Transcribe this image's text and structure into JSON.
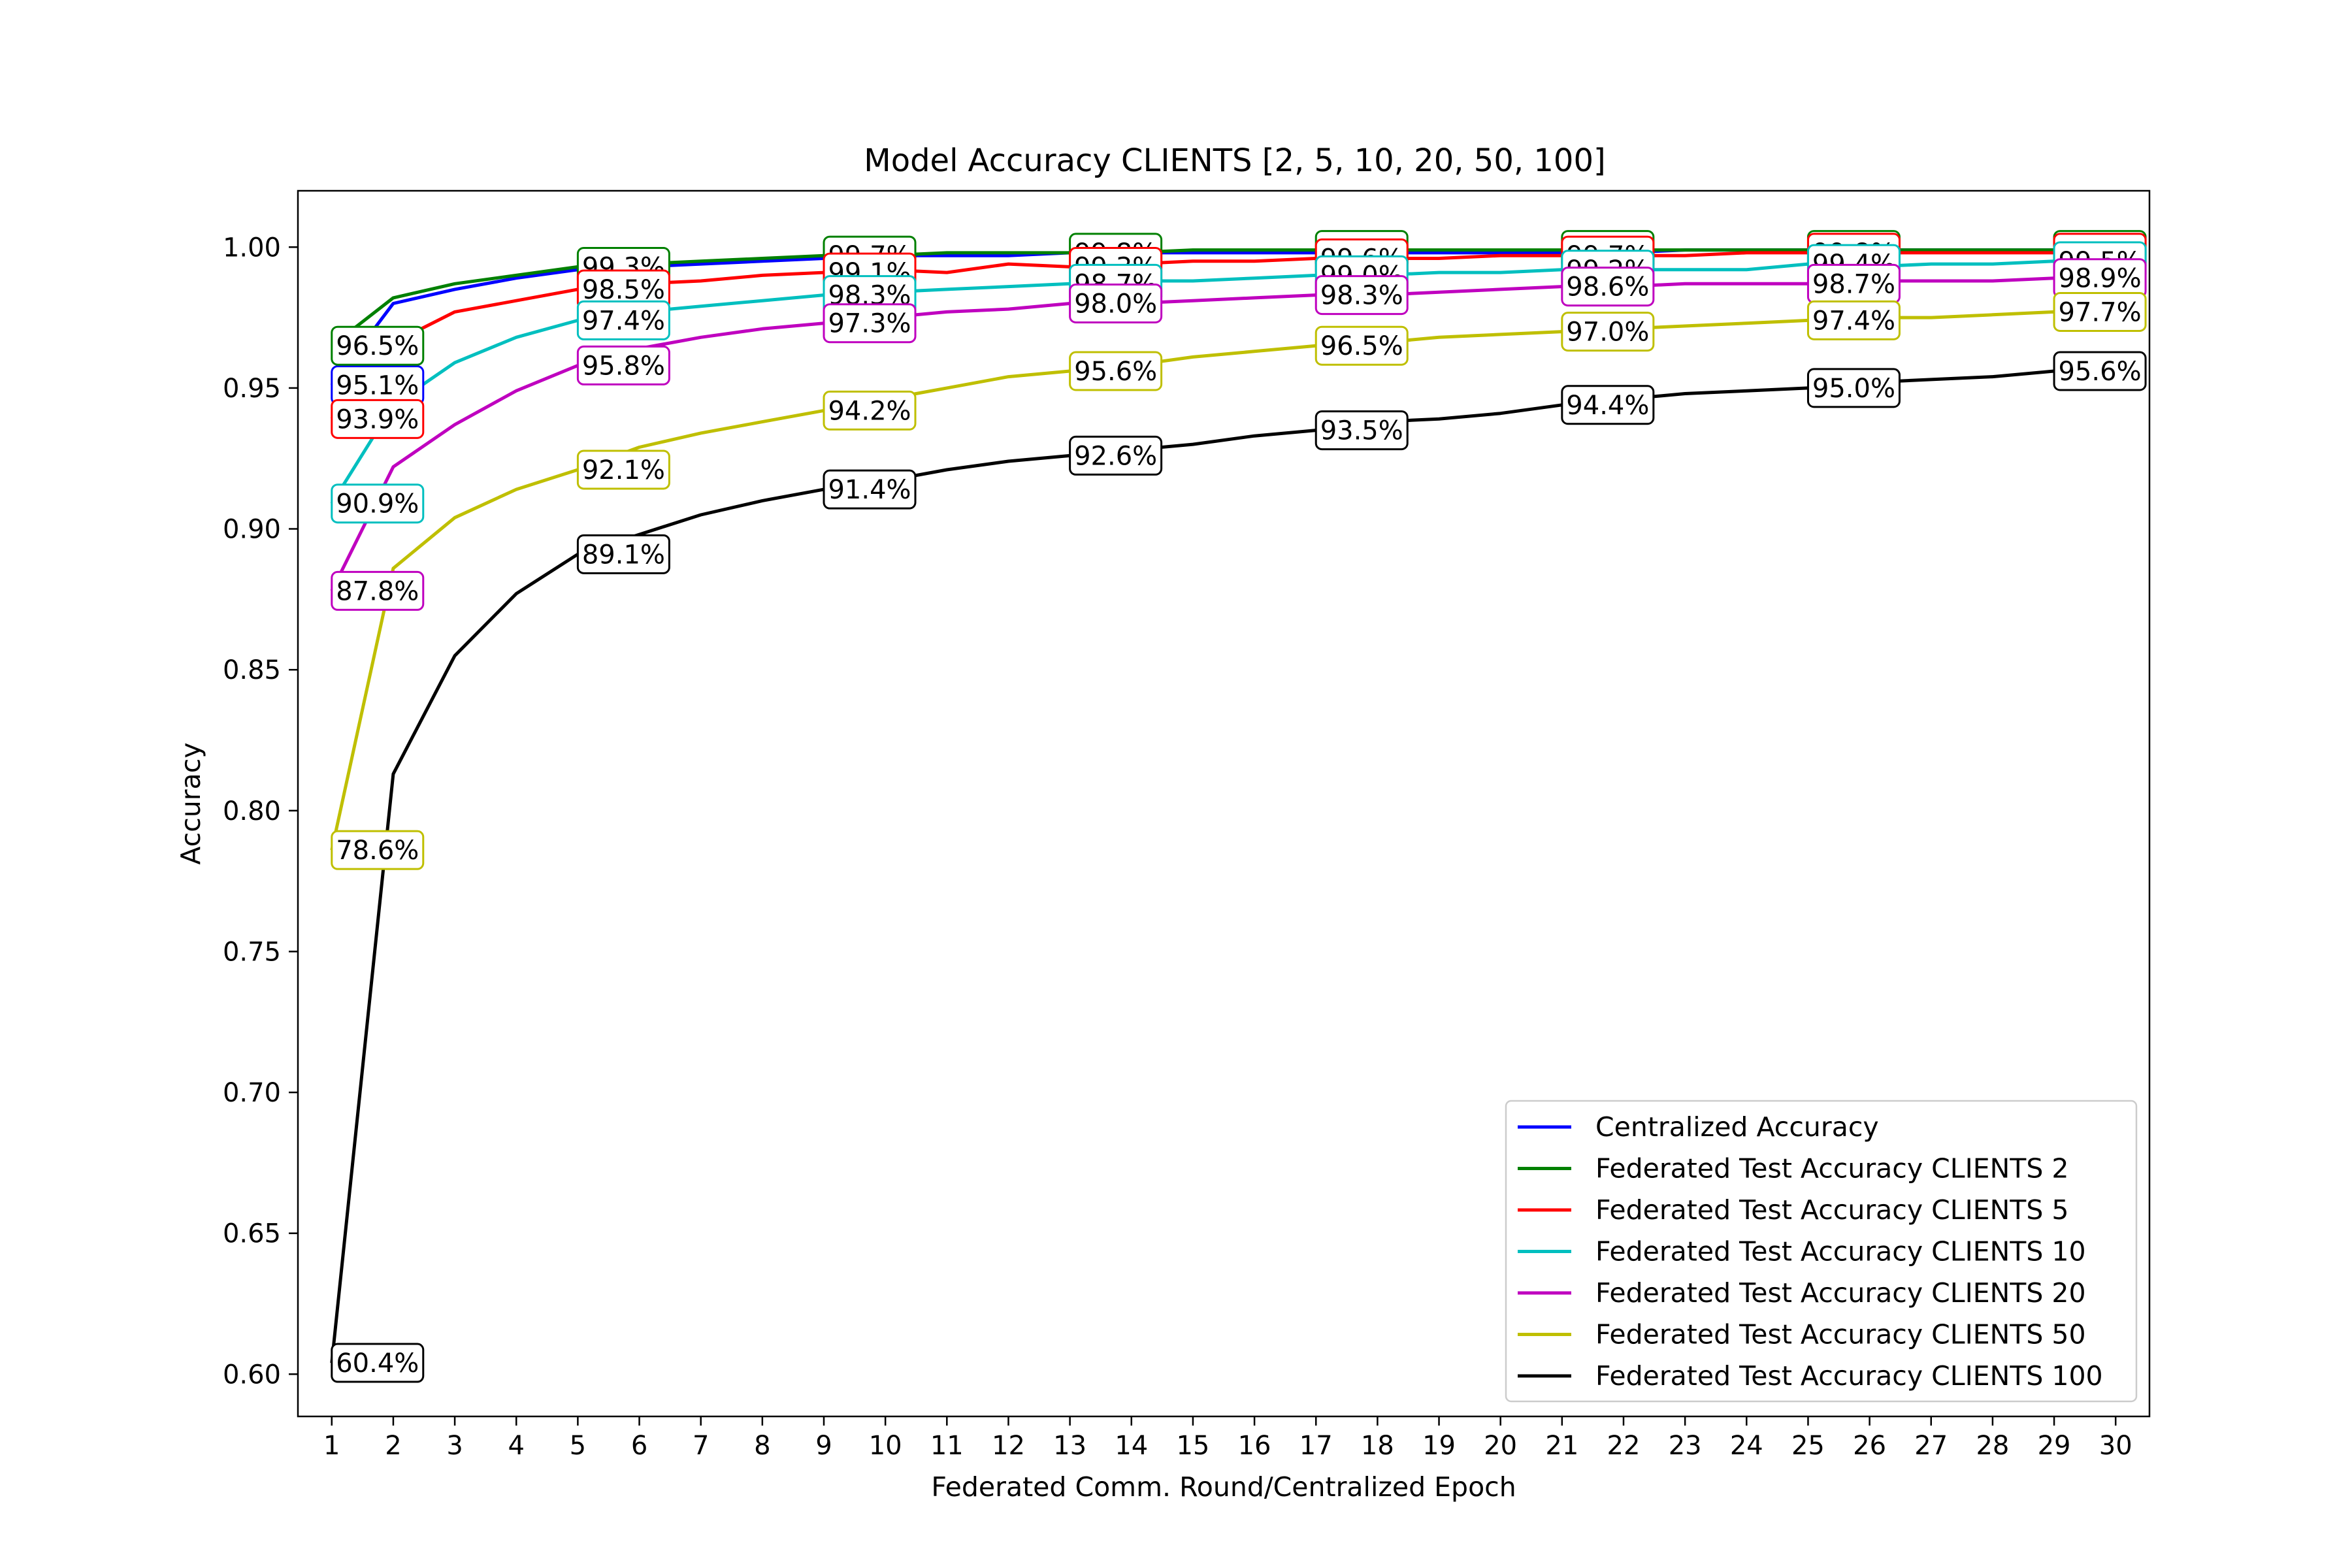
{
  "chart_data": {
    "type": "line",
    "title": "Model Accuracy CLIENTS [2, 5, 10, 20, 50, 100]",
    "xlabel": "Federated Comm. Round/Centralized Epoch",
    "ylabel": "Accuracy",
    "xlim": [
      0.45,
      30.55
    ],
    "ylim": [
      0.585,
      1.02
    ],
    "x": [
      1,
      2,
      3,
      4,
      5,
      6,
      7,
      8,
      9,
      10,
      11,
      12,
      13,
      14,
      15,
      16,
      17,
      18,
      19,
      20,
      21,
      22,
      23,
      24,
      25,
      26,
      27,
      28,
      29,
      30
    ],
    "x_tick_labels": [
      "1",
      "2",
      "3",
      "4",
      "5",
      "6",
      "7",
      "8",
      "9",
      "10",
      "11",
      "12",
      "13",
      "14",
      "15",
      "16",
      "17",
      "18",
      "19",
      "20",
      "21",
      "22",
      "23",
      "24",
      "25",
      "26",
      "27",
      "28",
      "29",
      "30"
    ],
    "y_ticks": [
      0.6,
      0.65,
      0.7,
      0.75,
      0.8,
      0.85,
      0.9,
      0.95,
      1.0
    ],
    "y_tick_labels": [
      "0.60",
      "0.65",
      "0.70",
      "0.75",
      "0.80",
      "0.85",
      "0.90",
      "0.95",
      "1.00"
    ],
    "grid": false,
    "legend_position": "bottom-right",
    "series": [
      {
        "name": "Centralized Accuracy",
        "color": "#0000ff",
        "values": [
          0.951,
          0.98,
          0.985,
          0.989,
          0.992,
          0.993,
          0.994,
          0.995,
          0.996,
          0.997,
          0.997,
          0.997,
          0.998,
          0.998,
          0.998,
          0.998,
          0.998,
          0.998,
          0.998,
          0.998,
          0.998,
          0.998,
          0.999,
          0.999,
          0.999,
          0.999,
          0.999,
          0.999,
          0.999,
          0.999
        ],
        "labels": [
          {
            "x": 1,
            "y": 0.951,
            "text": "95.1%"
          }
        ]
      },
      {
        "name": "Federated Test Accuracy CLIENTS 2",
        "color": "#008000",
        "values": [
          0.965,
          0.982,
          0.987,
          0.99,
          0.993,
          0.994,
          0.995,
          0.996,
          0.997,
          0.997,
          0.998,
          0.998,
          0.998,
          0.998,
          0.999,
          0.999,
          0.999,
          0.999,
          0.999,
          0.999,
          0.999,
          0.999,
          0.999,
          0.999,
          0.999,
          0.999,
          0.999,
          0.999,
          0.999,
          0.999
        ],
        "labels": [
          {
            "x": 1,
            "y": 0.965,
            "text": "96.5%"
          },
          {
            "x": 5,
            "y": 0.993,
            "text": "99.3%"
          },
          {
            "x": 9,
            "y": 0.997,
            "text": "99.7%"
          },
          {
            "x": 13,
            "y": 0.998,
            "text": "99.8%"
          },
          {
            "x": 17,
            "y": 0.999,
            "text": "99.9%"
          },
          {
            "x": 21,
            "y": 0.999,
            "text": "99.9%"
          },
          {
            "x": 25,
            "y": 0.999,
            "text": "99.9%"
          },
          {
            "x": 29,
            "y": 0.999,
            "text": "99.9%"
          }
        ]
      },
      {
        "name": "Federated Test Accuracy CLIENTS 5",
        "color": "#ff0000",
        "values": [
          0.939,
          0.966,
          0.977,
          0.981,
          0.985,
          0.987,
          0.988,
          0.99,
          0.991,
          0.992,
          0.991,
          0.994,
          0.993,
          0.994,
          0.995,
          0.995,
          0.996,
          0.996,
          0.996,
          0.997,
          0.997,
          0.997,
          0.997,
          0.998,
          0.998,
          0.998,
          0.998,
          0.998,
          0.998,
          0.998
        ],
        "labels": [
          {
            "x": 1,
            "y": 0.939,
            "text": "93.9%"
          },
          {
            "x": 5,
            "y": 0.985,
            "text": "98.5%"
          },
          {
            "x": 9,
            "y": 0.991,
            "text": "99.1%"
          },
          {
            "x": 13,
            "y": 0.993,
            "text": "99.3%"
          },
          {
            "x": 17,
            "y": 0.996,
            "text": "99.6%"
          },
          {
            "x": 21,
            "y": 0.997,
            "text": "99.7%"
          },
          {
            "x": 25,
            "y": 0.998,
            "text": "99.8%"
          },
          {
            "x": 29,
            "y": 0.998,
            "text": "99.8%"
          }
        ]
      },
      {
        "name": "Federated Test Accuracy CLIENTS 10",
        "color": "#00bfbf",
        "values": [
          0.909,
          0.944,
          0.959,
          0.968,
          0.974,
          0.977,
          0.979,
          0.981,
          0.983,
          0.984,
          0.985,
          0.986,
          0.987,
          0.988,
          0.988,
          0.989,
          0.99,
          0.99,
          0.991,
          0.991,
          0.992,
          0.992,
          0.992,
          0.992,
          0.994,
          0.993,
          0.994,
          0.994,
          0.995,
          0.995
        ],
        "labels": [
          {
            "x": 1,
            "y": 0.909,
            "text": "90.9%"
          },
          {
            "x": 5,
            "y": 0.974,
            "text": "97.4%"
          },
          {
            "x": 9,
            "y": 0.983,
            "text": "98.3%"
          },
          {
            "x": 13,
            "y": 0.987,
            "text": "98.7%"
          },
          {
            "x": 17,
            "y": 0.99,
            "text": "99.0%"
          },
          {
            "x": 21,
            "y": 0.992,
            "text": "99.2%"
          },
          {
            "x": 25,
            "y": 0.994,
            "text": "99.4%"
          },
          {
            "x": 29,
            "y": 0.995,
            "text": "99.5%"
          }
        ]
      },
      {
        "name": "Federated Test Accuracy CLIENTS 20",
        "color": "#bf00bf",
        "values": [
          0.878,
          0.922,
          0.937,
          0.949,
          0.958,
          0.964,
          0.968,
          0.971,
          0.973,
          0.975,
          0.977,
          0.978,
          0.98,
          0.98,
          0.981,
          0.982,
          0.983,
          0.983,
          0.984,
          0.985,
          0.986,
          0.986,
          0.987,
          0.987,
          0.987,
          0.988,
          0.988,
          0.988,
          0.989,
          0.989
        ],
        "labels": [
          {
            "x": 1,
            "y": 0.878,
            "text": "87.8%"
          },
          {
            "x": 5,
            "y": 0.958,
            "text": "95.8%"
          },
          {
            "x": 9,
            "y": 0.973,
            "text": "97.3%"
          },
          {
            "x": 13,
            "y": 0.98,
            "text": "98.0%"
          },
          {
            "x": 17,
            "y": 0.983,
            "text": "98.3%"
          },
          {
            "x": 21,
            "y": 0.986,
            "text": "98.6%"
          },
          {
            "x": 25,
            "y": 0.987,
            "text": "98.7%"
          },
          {
            "x": 29,
            "y": 0.989,
            "text": "98.9%"
          }
        ]
      },
      {
        "name": "Federated Test Accuracy CLIENTS 50",
        "color": "#bfbf00",
        "values": [
          0.786,
          0.886,
          0.904,
          0.914,
          0.921,
          0.929,
          0.934,
          0.938,
          0.942,
          0.946,
          0.95,
          0.954,
          0.956,
          0.958,
          0.961,
          0.963,
          0.965,
          0.966,
          0.968,
          0.969,
          0.97,
          0.971,
          0.972,
          0.973,
          0.974,
          0.975,
          0.975,
          0.976,
          0.977,
          0.977
        ],
        "labels": [
          {
            "x": 1,
            "y": 0.786,
            "text": "78.6%"
          },
          {
            "x": 5,
            "y": 0.921,
            "text": "92.1%"
          },
          {
            "x": 9,
            "y": 0.942,
            "text": "94.2%"
          },
          {
            "x": 13,
            "y": 0.956,
            "text": "95.6%"
          },
          {
            "x": 17,
            "y": 0.965,
            "text": "96.5%"
          },
          {
            "x": 21,
            "y": 0.97,
            "text": "97.0%"
          },
          {
            "x": 25,
            "y": 0.974,
            "text": "97.4%"
          },
          {
            "x": 29,
            "y": 0.977,
            "text": "97.7%"
          }
        ]
      },
      {
        "name": "Federated Test Accuracy CLIENTS 100",
        "color": "#000000",
        "values": [
          0.604,
          0.813,
          0.855,
          0.877,
          0.891,
          0.898,
          0.905,
          0.91,
          0.914,
          0.917,
          0.921,
          0.924,
          0.926,
          0.928,
          0.93,
          0.933,
          0.935,
          0.938,
          0.939,
          0.941,
          0.944,
          0.946,
          0.948,
          0.949,
          0.95,
          0.952,
          0.953,
          0.954,
          0.956,
          0.957
        ],
        "labels": [
          {
            "x": 1,
            "y": 0.604,
            "text": "60.4%"
          },
          {
            "x": 5,
            "y": 0.891,
            "text": "89.1%"
          },
          {
            "x": 9,
            "y": 0.914,
            "text": "91.4%"
          },
          {
            "x": 13,
            "y": 0.926,
            "text": "92.6%"
          },
          {
            "x": 17,
            "y": 0.935,
            "text": "93.5%"
          },
          {
            "x": 21,
            "y": 0.944,
            "text": "94.4%"
          },
          {
            "x": 25,
            "y": 0.95,
            "text": "95.0%"
          },
          {
            "x": 29,
            "y": 0.956,
            "text": "95.6%"
          }
        ]
      }
    ]
  }
}
